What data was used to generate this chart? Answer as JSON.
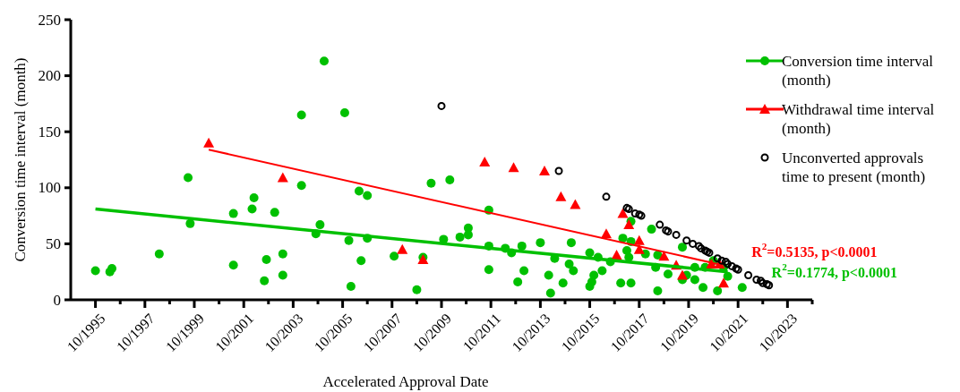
{
  "chart_data": {
    "type": "scatter",
    "xlabel": "Accelerated Approval Date",
    "ylabel": "Conversion time interval (month)",
    "xlim": [
      "1994-10",
      "2024-10"
    ],
    "xticks": [
      {
        "value": "1995-10",
        "label": "10/1995"
      },
      {
        "value": "1996-10",
        "label": null
      },
      {
        "value": "1997-10",
        "label": "10/1997"
      },
      {
        "value": "1998-10",
        "label": null
      },
      {
        "value": "1999-10",
        "label": "10/1999"
      },
      {
        "value": "2000-10",
        "label": null
      },
      {
        "value": "2001-10",
        "label": "10/2001"
      },
      {
        "value": "2002-10",
        "label": null
      },
      {
        "value": "2003-10",
        "label": "10/2003"
      },
      {
        "value": "2004-10",
        "label": null
      },
      {
        "value": "2005-10",
        "label": "10/2005"
      },
      {
        "value": "2006-10",
        "label": null
      },
      {
        "value": "2007-10",
        "label": "10/2007"
      },
      {
        "value": "2008-10",
        "label": null
      },
      {
        "value": "2009-10",
        "label": "10/2009"
      },
      {
        "value": "2010-10",
        "label": null
      },
      {
        "value": "2011-10",
        "label": "10/2011"
      },
      {
        "value": "2012-10",
        "label": null
      },
      {
        "value": "2013-10",
        "label": "10/2013"
      },
      {
        "value": "2014-10",
        "label": null
      },
      {
        "value": "2015-10",
        "label": "10/2015"
      },
      {
        "value": "2016-10",
        "label": null
      },
      {
        "value": "2017-10",
        "label": "10/2017"
      },
      {
        "value": "2018-10",
        "label": null
      },
      {
        "value": "2019-10",
        "label": "10/2019"
      },
      {
        "value": "2020-10",
        "label": null
      },
      {
        "value": "2021-10",
        "label": "10/2021"
      },
      {
        "value": "2022-10",
        "label": null
      },
      {
        "value": "2023-10",
        "label": "10/2023"
      },
      {
        "value": "2024-10",
        "label": null
      }
    ],
    "ylim": [
      0,
      250
    ],
    "yticks": [
      0,
      50,
      100,
      150,
      200,
      250
    ],
    "grid": false,
    "legend": "top right",
    "annotations": [
      "R$^{2}$=0.5135, p<0.0001",
      "R$^{2}$=0.1774, p<0.0001"
    ],
    "series": [
      {
        "name": "Conversion time interval (month)",
        "marker": "circle",
        "color": "#00c000",
        "x": [
          "1995-10",
          "1996-05",
          "1996-06",
          "1998-05",
          "1999-07",
          "1999-08",
          "2001-05",
          "2001-05",
          "2002-02",
          "2002-03",
          "2002-09",
          "2002-08",
          "2003-01",
          "2003-05",
          "2003-05",
          "2004-02",
          "2004-02",
          "2004-09",
          "2004-11",
          "2005-01",
          "2005-11",
          "2006-06",
          "2006-10",
          "2006-01",
          "2006-10",
          "2006-07",
          "2006-02",
          "2007-11",
          "2009-01",
          "2008-10",
          "2009-05",
          "2010-02",
          "2009-11",
          "2010-07",
          "2010-11",
          "2010-11",
          "2011-09",
          "2011-09",
          "2011-09",
          "2012-05",
          "2012-08",
          "2013-01",
          "2013-02",
          "2012-11",
          "2013-10",
          "2014-02",
          "2014-03",
          "2014-05",
          "2014-09",
          "2015-01",
          "2014-12",
          "2015-02",
          "2015-10",
          "2016-02",
          "2015-12",
          "2015-11",
          "2015-10",
          "2016-04",
          "2016-08",
          "2017-01",
          "2017-02",
          "2017-04",
          "2017-06",
          "2017-06",
          "2017-06",
          "2017-05",
          "2018-01",
          "2018-04",
          "2018-07",
          "2018-07",
          "2018-06",
          "2018-12",
          "2019-07",
          "2019-07",
          "2019-09",
          "2020-01",
          "2020-01",
          "2020-05",
          "2020-06",
          "2020-10",
          "2020-12",
          "2021-03",
          "2021-05",
          "2021-12"
        ],
        "values": [
          26,
          25,
          28,
          41,
          109,
          68,
          31,
          77,
          81,
          91,
          36,
          17,
          78,
          41,
          22,
          165,
          102,
          59,
          67,
          213,
          167,
          97,
          93,
          53,
          55,
          35,
          12,
          39,
          38,
          9,
          104,
          107,
          54,
          56,
          64,
          58,
          80,
          48,
          27,
          46,
          42,
          48,
          26,
          16,
          51,
          22,
          6,
          37,
          15,
          51,
          32,
          26,
          42,
          38,
          22,
          16,
          12,
          26,
          34,
          15,
          55,
          44,
          15,
          70,
          52,
          38,
          41,
          63,
          40,
          8,
          29,
          23,
          47,
          18,
          22,
          18,
          29,
          11,
          29,
          35,
          8,
          29,
          21,
          11
        ]
      },
      {
        "name": "Withdrawal time interval (month)",
        "marker": "triangle",
        "color": "#ff0000",
        "x": [
          "2000-05",
          "2003-05",
          "2008-03",
          "2009-01",
          "2011-07",
          "2012-09",
          "2013-12",
          "2014-08",
          "2015-03",
          "2016-06",
          "2016-11",
          "2017-02",
          "2017-05",
          "2017-10",
          "2017-10",
          "2018-10",
          "2019-04",
          "2019-07",
          "2020-09",
          "2021-01",
          "2021-03"
        ],
        "values": [
          140,
          109,
          45,
          36,
          123,
          118,
          115,
          92,
          85,
          59,
          40,
          77,
          67,
          53,
          45,
          39,
          31,
          22,
          32,
          32,
          15
        ]
      },
      {
        "name": "Unconverted approvals time to present (month)",
        "marker": "circle",
        "color": "#000000",
        "x": [
          "2009-10",
          "2014-07",
          "2016-06",
          "2017-04",
          "2017-05",
          "2017-08",
          "2017-10",
          "2017-11",
          "2018-08",
          "2018-11",
          "2018-12",
          "2019-04",
          "2019-09",
          "2019-12",
          "2020-03",
          "2020-04",
          "2020-06",
          "2020-07",
          "2020-08",
          "2020-12",
          "2021-02",
          "2021-04",
          "2021-05",
          "2021-07",
          "2021-09",
          "2021-10",
          "2022-03",
          "2022-07",
          "2022-09",
          "2022-10",
          "2022-12",
          "2023-01"
        ],
        "values": [
          173,
          115,
          92,
          82,
          81,
          77,
          76,
          75,
          67,
          62,
          61,
          58,
          53,
          50,
          48,
          46,
          44,
          43,
          42,
          37,
          35,
          34,
          32,
          30,
          28,
          27,
          22,
          18,
          17,
          15,
          14,
          13
        ]
      },
      {
        "type": "line",
        "color": "#ff0000",
        "x": [
          "2000-05",
          "2020-12"
        ],
        "values": [
          134,
          32
        ]
      },
      {
        "type": "line",
        "color": "#00c000",
        "x": [
          "1995-10",
          "2021-05"
        ],
        "values": [
          81,
          25
        ]
      }
    ]
  }
}
